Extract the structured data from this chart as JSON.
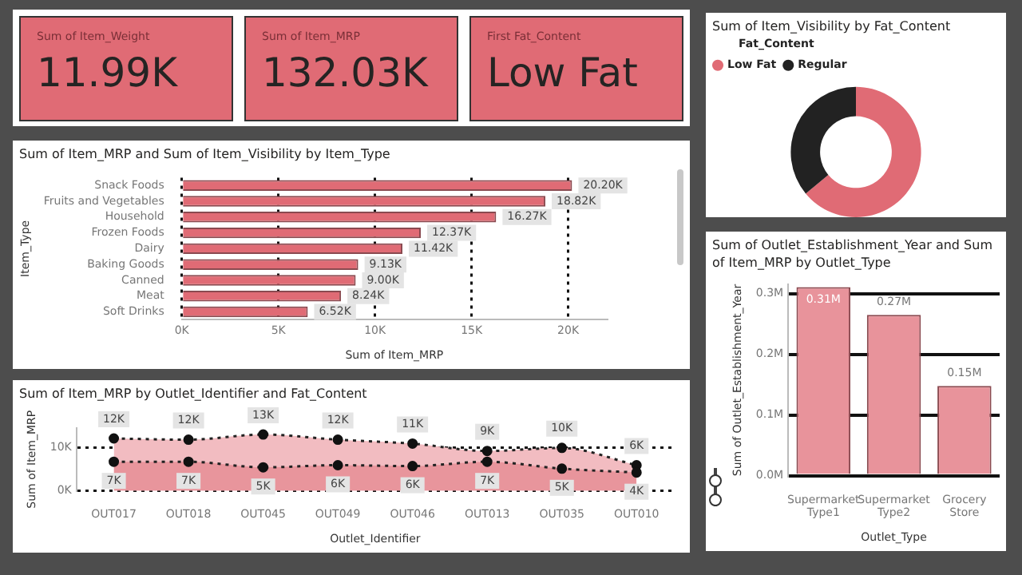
{
  "chart_data": [
    {
      "type": "other",
      "title": "Sum of Item_Weight",
      "annotations": [
        "11.99K"
      ]
    },
    {
      "type": "other",
      "title": "Sum of Item_MRP",
      "annotations": [
        "132.03K"
      ]
    },
    {
      "type": "other",
      "title": "First Fat_Content",
      "annotations": [
        "Low Fat"
      ]
    },
    {
      "type": "donut",
      "title": "Sum of Item_Visibility by Fat_Content",
      "legend_title": "Fat_Content",
      "legend": "top left",
      "categories": [
        "Low Fat",
        "Regular"
      ],
      "values": [
        64,
        36
      ],
      "colors": [
        "#e06b75",
        "#222222"
      ]
    },
    {
      "type": "bar",
      "orientation": "horizontal",
      "title": "Sum of Item_MRP and Sum of Item_Visibility by Item_Type",
      "xlabel": "Sum of Item_MRP",
      "ylabel": "Item_Type",
      "categories": [
        "Snack Foods",
        "Fruits and Vegetables",
        "Household",
        "Frozen Foods",
        "Dairy",
        "Baking Goods",
        "Canned",
        "Meat",
        "Soft Drinks"
      ],
      "values": [
        20200,
        18820,
        16270,
        12370,
        11420,
        9130,
        9000,
        8240,
        6520
      ],
      "value_labels": [
        "20.20K",
        "18.82K",
        "16.27K",
        "12.37K",
        "11.42K",
        "9.13K",
        "9.00K",
        "8.24K",
        "6.52K"
      ],
      "color": "#e06b75",
      "xlim": [
        0,
        22000
      ],
      "xticks": [
        {
          "value": 0,
          "label": "0K"
        },
        {
          "value": 5000,
          "label": "5K"
        },
        {
          "value": 10000,
          "label": "10K"
        },
        {
          "value": 15000,
          "label": "15K"
        },
        {
          "value": 20000,
          "label": "20K"
        }
      ],
      "grid": "x"
    },
    {
      "type": "bar",
      "title": "Sum of Outlet_Establishment_Year and Sum of Item_MRP by Outlet_Type",
      "xlabel": "Outlet_Type",
      "ylabel": "Sum of Outlet_Establishment_Year",
      "categories": [
        "Supermarket Type1",
        "Supermarket Type2",
        "Grocery Store"
      ],
      "values": [
        311000,
        265000,
        148000
      ],
      "value_labels": [
        "0.31M",
        "0.27M",
        "0.15M"
      ],
      "color": "#e8939b",
      "ylim": [
        0,
        315000
      ],
      "yticks": [
        {
          "value": 0,
          "label": "0.0M"
        },
        {
          "value": 100000,
          "label": "0.1M"
        },
        {
          "value": 200000,
          "label": "0.2M"
        },
        {
          "value": 300000,
          "label": "0.3M"
        }
      ],
      "grid": "y"
    },
    {
      "type": "area",
      "title": "Sum of Item_MRP by Outlet_Identifier and Fat_Content",
      "xlabel": "Outlet_Identifier",
      "ylabel": "Sum of Item_MRP",
      "categories": [
        "OUT017",
        "OUT018",
        "OUT045",
        "OUT049",
        "OUT046",
        "OUT013",
        "OUT035",
        "OUT010"
      ],
      "series": [
        {
          "color": "#e8959c",
          "values": [
            6700,
            6700,
            5400,
            5900,
            5700,
            6700,
            5100,
            4200
          ],
          "value_labels": [
            "7K",
            "7K",
            "5K",
            "6K",
            "6K",
            "7K",
            "5K",
            "4K"
          ]
        },
        {
          "color": "#f2bcc1",
          "values": [
            12100,
            11800,
            13000,
            11800,
            10900,
            9200,
            9900,
            5900
          ],
          "value_labels": [
            "12K",
            "12K",
            "13K",
            "12K",
            "11K",
            "9K",
            "10K",
            "6K"
          ]
        }
      ],
      "ylim": [
        0,
        14500
      ],
      "yticks": [
        {
          "value": 0,
          "label": "0K"
        },
        {
          "value": 10000,
          "label": "10K"
        }
      ],
      "grid": "y",
      "marker": "circle",
      "line_style": "dotted"
    }
  ]
}
